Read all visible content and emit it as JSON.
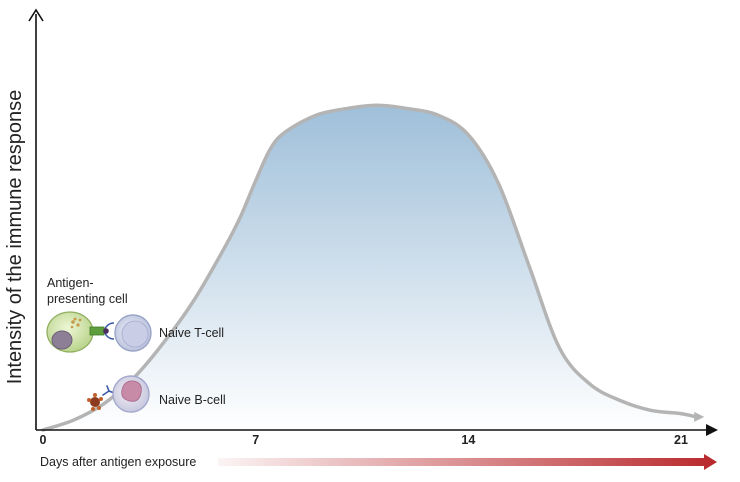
{
  "chart_data": {
    "type": "area",
    "ylabel": "Intensity of the immune response",
    "xlabel": "Days after antigen exposure",
    "x_ticks": [
      "0",
      "7",
      "14",
      "21"
    ],
    "xlim": [
      0,
      21.5
    ],
    "ylim": [
      0,
      1
    ],
    "grid": false,
    "series": [
      {
        "x": [
          0,
          1,
          2,
          3,
          4,
          5,
          6,
          6.5,
          7,
          7.5,
          8,
          9,
          10,
          11,
          12,
          13,
          14,
          15,
          16,
          17,
          18,
          19,
          20,
          21,
          21.5
        ],
        "y": [
          0.0,
          0.03,
          0.08,
          0.16,
          0.27,
          0.4,
          0.56,
          0.65,
          0.76,
          0.86,
          0.91,
          0.96,
          0.98,
          0.99,
          0.98,
          0.96,
          0.9,
          0.75,
          0.5,
          0.25,
          0.14,
          0.09,
          0.06,
          0.05,
          0.04
        ]
      }
    ],
    "colors": {
      "fill_top": "#9fbfd9",
      "fill_bottom": "#ffffff",
      "curve": "#b4b4b4",
      "arrow": "#b8282c"
    },
    "annotations": {
      "apc_label_line1": "Antigen-",
      "apc_label_line2": "presenting cell",
      "t_cell_label": "Naive T-cell",
      "b_cell_label": "Naive B-cell"
    }
  }
}
